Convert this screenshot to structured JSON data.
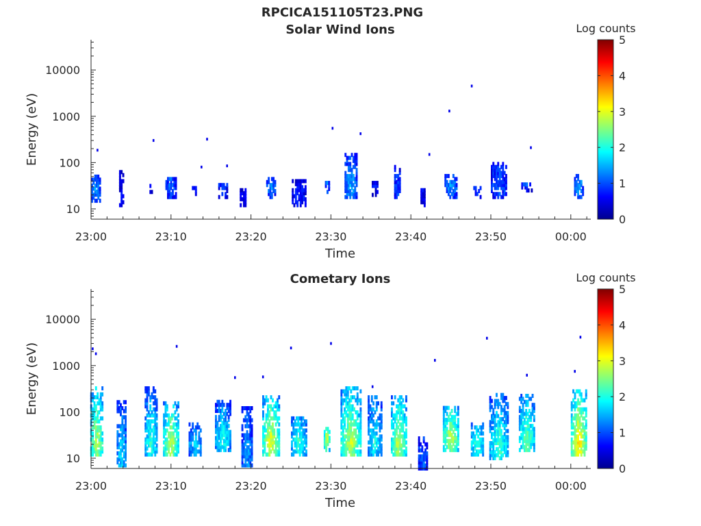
{
  "figure_title": "RPCICA151105T23.PNG",
  "colormap": [
    "#00008f",
    "#0000ff",
    "#0080ff",
    "#00ffff",
    "#80ff80",
    "#ffff00",
    "#ff8000",
    "#ff0000",
    "#800000"
  ],
  "chart_data": [
    {
      "type": "heatmap",
      "title": "Solar Wind Ions",
      "xlabel": "Time",
      "ylabel": "Energy (eV)",
      "x_ticks": [
        "23:00",
        "23:10",
        "23:20",
        "23:30",
        "23:40",
        "23:50",
        "00:00"
      ],
      "x_range_minutes": [
        0,
        62.5
      ],
      "y_scale": "log",
      "y_range": [
        6,
        45000
      ],
      "y_ticks": [
        {
          "value": 10,
          "label": "10"
        },
        {
          "value": 100,
          "label": "100"
        },
        {
          "value": 1000,
          "label": "1000"
        },
        {
          "value": 10000,
          "label": "10000"
        }
      ],
      "colorbar": {
        "label": "Log counts",
        "range": [
          0,
          5
        ],
        "ticks": [
          "0",
          "1",
          "2",
          "3",
          "4",
          "5"
        ]
      },
      "clusters": [
        {
          "t": 0.6,
          "e": [
            15,
            55
          ],
          "level": 1.4,
          "width": 1.2
        },
        {
          "t": 3.8,
          "e": [
            12,
            70
          ],
          "level": 0.5,
          "width": 0.6
        },
        {
          "t": 7.5,
          "e": [
            20,
            35
          ],
          "level": 0.7,
          "width": 0.4
        },
        {
          "t": 10.0,
          "e": [
            18,
            55
          ],
          "level": 1.2,
          "width": 1.4
        },
        {
          "t": 13.0,
          "e": [
            18,
            35
          ],
          "level": 0.8,
          "width": 0.8
        },
        {
          "t": 16.5,
          "e": [
            18,
            40
          ],
          "level": 1.0,
          "width": 1.2
        },
        {
          "t": 19.0,
          "e": [
            12,
            30
          ],
          "level": 0.6,
          "width": 0.8
        },
        {
          "t": 22.5,
          "e": [
            18,
            55
          ],
          "level": 1.4,
          "width": 1.2
        },
        {
          "t": 26.0,
          "e": [
            12,
            45
          ],
          "level": 0.8,
          "width": 1.8
        },
        {
          "t": 29.5,
          "e": [
            20,
            40
          ],
          "level": 1.3,
          "width": 0.5
        },
        {
          "t": 32.5,
          "e": [
            18,
            170
          ],
          "level": 1.5,
          "width": 1.6
        },
        {
          "t": 35.5,
          "e": [
            20,
            40
          ],
          "level": 0.7,
          "width": 0.8
        },
        {
          "t": 38.3,
          "e": [
            18,
            90
          ],
          "level": 1.1,
          "width": 0.8
        },
        {
          "t": 41.5,
          "e": [
            12,
            30
          ],
          "level": 0.6,
          "width": 0.6
        },
        {
          "t": 45.0,
          "e": [
            18,
            60
          ],
          "level": 1.4,
          "width": 1.6
        },
        {
          "t": 48.3,
          "e": [
            18,
            35
          ],
          "level": 1.0,
          "width": 1.0
        },
        {
          "t": 51.0,
          "e": [
            18,
            110
          ],
          "level": 1.1,
          "width": 2.0
        },
        {
          "t": 54.5,
          "e": [
            25,
            40
          ],
          "level": 1.4,
          "width": 1.4
        },
        {
          "t": 61.0,
          "e": [
            18,
            60
          ],
          "level": 1.5,
          "width": 1.2
        }
      ],
      "points": [
        {
          "t": 0.8,
          "e": 185,
          "level": 0.5
        },
        {
          "t": 7.8,
          "e": 300,
          "level": 0.5
        },
        {
          "t": 13.8,
          "e": 80,
          "level": 0.5
        },
        {
          "t": 14.5,
          "e": 320,
          "level": 0.5
        },
        {
          "t": 17.0,
          "e": 85,
          "level": 0.5
        },
        {
          "t": 30.2,
          "e": 550,
          "level": 0.5
        },
        {
          "t": 33.7,
          "e": 420,
          "level": 0.5
        },
        {
          "t": 42.3,
          "e": 150,
          "level": 0.5
        },
        {
          "t": 44.8,
          "e": 1300,
          "level": 0.5
        },
        {
          "t": 47.6,
          "e": 4500,
          "level": 0.5
        },
        {
          "t": 55.0,
          "e": 210,
          "level": 0.5
        }
      ]
    },
    {
      "type": "heatmap",
      "title": "Cometary Ions",
      "xlabel": "Time",
      "ylabel": "Energy (eV)",
      "x_ticks": [
        "23:00",
        "23:10",
        "23:20",
        "23:30",
        "23:40",
        "23:50",
        "00:00"
      ],
      "x_range_minutes": [
        0,
        62.5
      ],
      "y_scale": "log",
      "y_range": [
        6,
        45000
      ],
      "y_ticks": [
        {
          "value": 10,
          "label": "10"
        },
        {
          "value": 100,
          "label": "100"
        },
        {
          "value": 1000,
          "label": "1000"
        },
        {
          "value": 10000,
          "label": "10000"
        }
      ],
      "colorbar": {
        "label": "Log counts",
        "range": [
          0,
          5
        ],
        "ticks": [
          "0",
          "1",
          "2",
          "3",
          "4",
          "5"
        ]
      },
      "clusters": [
        {
          "t": 0.7,
          "e": [
            12,
            400
          ],
          "level": 2.9,
          "width": 1.6
        },
        {
          "t": 3.8,
          "e": [
            7,
            200
          ],
          "level": 1.8,
          "width": 1.2
        },
        {
          "t": 7.5,
          "e": [
            12,
            400
          ],
          "level": 2.2,
          "width": 1.6
        },
        {
          "t": 10.0,
          "e": [
            12,
            180
          ],
          "level": 2.9,
          "width": 2.0
        },
        {
          "t": 13.0,
          "e": [
            12,
            60
          ],
          "level": 1.8,
          "width": 1.6
        },
        {
          "t": 16.5,
          "e": [
            15,
            200
          ],
          "level": 2.0,
          "width": 2.0
        },
        {
          "t": 19.5,
          "e": [
            7,
            150
          ],
          "level": 1.5,
          "width": 1.4
        },
        {
          "t": 22.5,
          "e": [
            12,
            250
          ],
          "level": 3.1,
          "width": 2.2
        },
        {
          "t": 26.0,
          "e": [
            12,
            90
          ],
          "level": 2.2,
          "width": 2.0
        },
        {
          "t": 29.5,
          "e": [
            15,
            50
          ],
          "level": 3.0,
          "width": 0.8
        },
        {
          "t": 32.5,
          "e": [
            12,
            350
          ],
          "level": 2.9,
          "width": 2.6
        },
        {
          "t": 35.5,
          "e": [
            12,
            250
          ],
          "level": 2.0,
          "width": 1.8
        },
        {
          "t": 38.5,
          "e": [
            12,
            250
          ],
          "level": 2.9,
          "width": 2.0
        },
        {
          "t": 41.5,
          "e": [
            6,
            30
          ],
          "level": 1.2,
          "width": 1.2
        },
        {
          "t": 45.0,
          "e": [
            15,
            150
          ],
          "level": 2.9,
          "width": 2.0
        },
        {
          "t": 48.3,
          "e": [
            12,
            60
          ],
          "level": 2.3,
          "width": 1.6
        },
        {
          "t": 51.0,
          "e": [
            10,
            250
          ],
          "level": 2.3,
          "width": 2.4
        },
        {
          "t": 54.5,
          "e": [
            15,
            250
          ],
          "level": 2.5,
          "width": 2.0
        },
        {
          "t": 61.0,
          "e": [
            12,
            300
          ],
          "level": 3.4,
          "width": 2.0
        }
      ],
      "points": [
        {
          "t": 0.2,
          "e": 2300,
          "level": 0.5
        },
        {
          "t": 0.6,
          "e": 1800,
          "level": 0.5
        },
        {
          "t": 10.7,
          "e": 2600,
          "level": 0.5
        },
        {
          "t": 18.0,
          "e": 550,
          "level": 0.5
        },
        {
          "t": 21.5,
          "e": 570,
          "level": 0.5
        },
        {
          "t": 25.0,
          "e": 2400,
          "level": 0.5
        },
        {
          "t": 30.0,
          "e": 3000,
          "level": 0.5
        },
        {
          "t": 35.2,
          "e": 350,
          "level": 0.5
        },
        {
          "t": 43.0,
          "e": 1300,
          "level": 0.5
        },
        {
          "t": 49.5,
          "e": 3900,
          "level": 0.5
        },
        {
          "t": 54.5,
          "e": 620,
          "level": 0.5
        },
        {
          "t": 61.2,
          "e": 4100,
          "level": 0.5
        },
        {
          "t": 60.5,
          "e": 750,
          "level": 0.5
        }
      ]
    }
  ]
}
